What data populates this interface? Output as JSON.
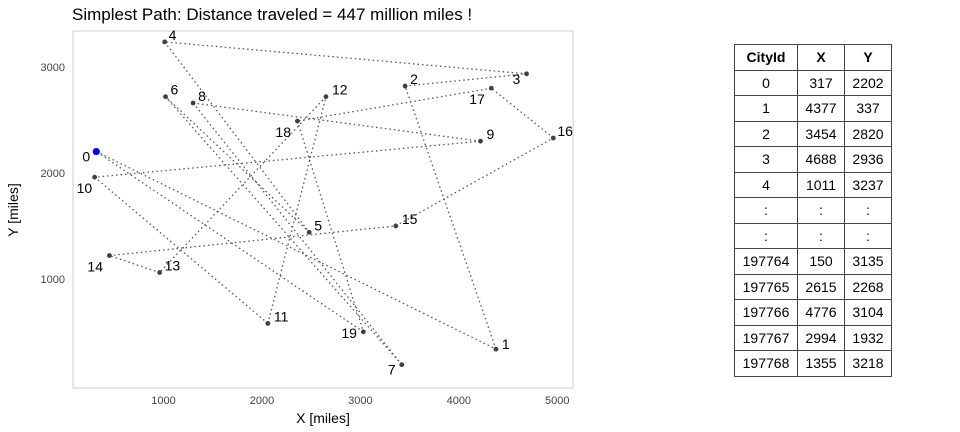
{
  "chart_data": {
    "type": "scatter",
    "title": "Simplest Path: Distance traveled = 447 million miles !",
    "xlabel": "X [miles]",
    "ylabel": "Y [miles]",
    "xlim": [
      80,
      5160
    ],
    "ylim": [
      -30,
      3340
    ],
    "xticks": [
      1000,
      2000,
      3000,
      4000,
      5000
    ],
    "yticks": [
      1000,
      2000,
      3000
    ],
    "grid": false,
    "points": [
      {
        "label": "0",
        "x": 317,
        "y": 2202
      },
      {
        "label": "1",
        "x": 4377,
        "y": 337
      },
      {
        "label": "2",
        "x": 3454,
        "y": 2820
      },
      {
        "label": "3",
        "x": 4688,
        "y": 2936
      },
      {
        "label": "4",
        "x": 1011,
        "y": 3237
      },
      {
        "label": "5",
        "x": 2480,
        "y": 1440
      },
      {
        "label": "6",
        "x": 1020,
        "y": 2720
      },
      {
        "label": "7",
        "x": 3420,
        "y": 190
      },
      {
        "label": "8",
        "x": 1300,
        "y": 2660
      },
      {
        "label": "9",
        "x": 4220,
        "y": 2300
      },
      {
        "label": "10",
        "x": 300,
        "y": 1960
      },
      {
        "label": "11",
        "x": 2060,
        "y": 580
      },
      {
        "label": "12",
        "x": 2650,
        "y": 2720
      },
      {
        "label": "13",
        "x": 960,
        "y": 1060
      },
      {
        "label": "14",
        "x": 450,
        "y": 1220
      },
      {
        "label": "15",
        "x": 3360,
        "y": 1500
      },
      {
        "label": "16",
        "x": 4960,
        "y": 2330
      },
      {
        "label": "17",
        "x": 4330,
        "y": 2800
      },
      {
        "label": "18",
        "x": 2360,
        "y": 2490
      },
      {
        "label": "19",
        "x": 3030,
        "y": 500
      }
    ],
    "path": [
      "0",
      "1",
      "2",
      "3",
      "4",
      "5",
      "6",
      "7",
      "8",
      "9",
      "10",
      "11",
      "12",
      "13",
      "14",
      "15",
      "16",
      "17",
      "18",
      "19",
      "0"
    ],
    "colors": {
      "start": "#0000ee",
      "point": "#404040",
      "path": "#555555",
      "frame": "#cccccc"
    }
  },
  "table": {
    "headers": [
      "CityId",
      "X",
      "Y"
    ],
    "rows": [
      [
        "0",
        "317",
        "2202"
      ],
      [
        "1",
        "4377",
        "337"
      ],
      [
        "2",
        "3454",
        "2820"
      ],
      [
        "3",
        "4688",
        "2936"
      ],
      [
        "4",
        "1011",
        "3237"
      ],
      [
        ":",
        ":",
        ":"
      ],
      [
        ":",
        ":",
        ":"
      ],
      [
        "197764",
        "150",
        "3135"
      ],
      [
        "197765",
        "2615",
        "2268"
      ],
      [
        "197766",
        "4776",
        "3104"
      ],
      [
        "197767",
        "2994",
        "1932"
      ],
      [
        "197768",
        "1355",
        "3218"
      ]
    ]
  }
}
